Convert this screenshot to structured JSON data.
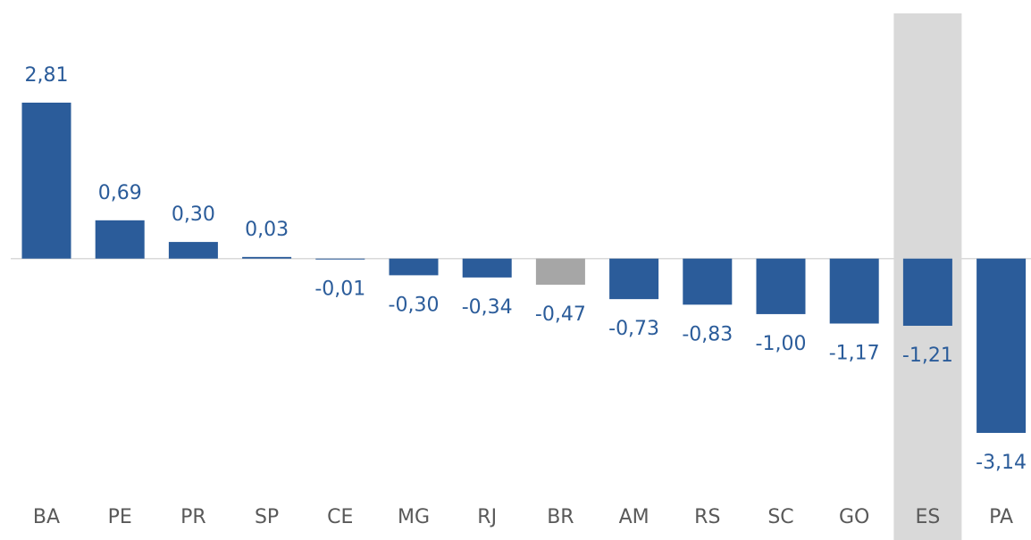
{
  "chart_data": {
    "type": "bar",
    "categories": [
      "BA",
      "PE",
      "PR",
      "SP",
      "CE",
      "MG",
      "RJ",
      "BR",
      "AM",
      "RS",
      "SC",
      "GO",
      "ES",
      "PA"
    ],
    "values": [
      2.81,
      0.69,
      0.3,
      0.03,
      -0.01,
      -0.3,
      -0.34,
      -0.47,
      -0.73,
      -0.83,
      -1.0,
      -1.17,
      -1.21,
      -3.14
    ],
    "value_labels": [
      "2,81",
      "0,69",
      "0,30",
      "0,03",
      "-0,01",
      "-0,30",
      "-0,34",
      "-0,47",
      "-0,73",
      "-0,83",
      "-1,00",
      "-1,17",
      "-1,21",
      "-3,14"
    ],
    "colors": [
      "#2b5c9a",
      "#2b5c9a",
      "#2b5c9a",
      "#2b5c9a",
      "#2b5c9a",
      "#2b5c9a",
      "#2b5c9a",
      "#a6a6a6",
      "#2b5c9a",
      "#2b5c9a",
      "#2b5c9a",
      "#2b5c9a",
      "#2b5c9a",
      "#2b5c9a"
    ],
    "highlight": "ES",
    "highlight_color": "#d9d9d9"
  }
}
